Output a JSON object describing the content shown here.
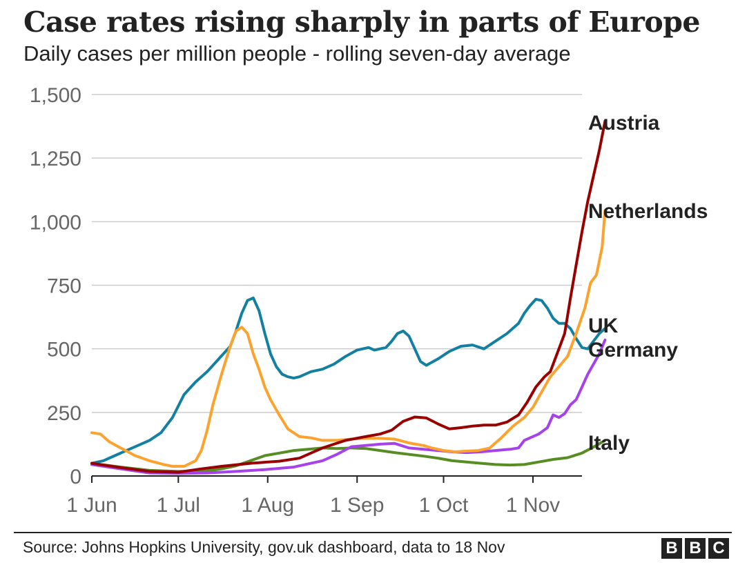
{
  "chart_data": {
    "type": "line",
    "title": "Case rates rising sharply in parts of Europe",
    "subtitle": "Daily cases per million people - rolling seven-day average",
    "xlabel": "",
    "ylabel": "",
    "ylim": [
      0,
      1500
    ],
    "yticks": [
      0,
      250,
      500,
      750,
      1000,
      1250,
      1500
    ],
    "ytick_labels": [
      "0",
      "250",
      "500",
      "750",
      "1,000",
      "1,250",
      "1,500"
    ],
    "xticks": [
      0,
      30,
      61,
      92,
      122,
      153
    ],
    "xtick_labels": [
      "1 Jun",
      "1 Jul",
      "1 Aug",
      "1 Sep",
      "1 Oct",
      "1 Nov"
    ],
    "xlim": [
      0,
      170
    ],
    "x_unit": "days since 1 Jun",
    "grid": true,
    "legend": "inline labels at line ends (right)",
    "series": [
      {
        "name": "Austria",
        "color": "#990000",
        "label_value": 1395,
        "points": [
          [
            0,
            50
          ],
          [
            10,
            33
          ],
          [
            20,
            18
          ],
          [
            30,
            15
          ],
          [
            38,
            28
          ],
          [
            45,
            38
          ],
          [
            55,
            50
          ],
          [
            65,
            58
          ],
          [
            72,
            70
          ],
          [
            80,
            110
          ],
          [
            88,
            140
          ],
          [
            95,
            155
          ],
          [
            100,
            165
          ],
          [
            104,
            180
          ],
          [
            108,
            215
          ],
          [
            112,
            232
          ],
          [
            116,
            228
          ],
          [
            120,
            205
          ],
          [
            124,
            185
          ],
          [
            128,
            190
          ],
          [
            132,
            196
          ],
          [
            136,
            200
          ],
          [
            140,
            200
          ],
          [
            144,
            212
          ],
          [
            148,
            240
          ],
          [
            151,
            290
          ],
          [
            154,
            350
          ],
          [
            157,
            390
          ],
          [
            159,
            410
          ],
          [
            162,
            500
          ],
          [
            164,
            560
          ],
          [
            166,
            700
          ],
          [
            168,
            830
          ],
          [
            170,
            960
          ],
          [
            172,
            1080
          ],
          [
            174,
            1180
          ],
          [
            176,
            1280
          ],
          [
            178,
            1395
          ]
        ]
      },
      {
        "name": "Netherlands",
        "color": "#fca22e",
        "label_value": 1045,
        "points": [
          [
            0,
            170
          ],
          [
            3,
            165
          ],
          [
            6,
            135
          ],
          [
            10,
            110
          ],
          [
            15,
            80
          ],
          [
            20,
            60
          ],
          [
            25,
            45
          ],
          [
            28,
            38
          ],
          [
            32,
            38
          ],
          [
            36,
            60
          ],
          [
            38,
            100
          ],
          [
            40,
            180
          ],
          [
            42,
            280
          ],
          [
            45,
            400
          ],
          [
            48,
            510
          ],
          [
            50,
            570
          ],
          [
            52,
            585
          ],
          [
            54,
            560
          ],
          [
            56,
            480
          ],
          [
            58,
            420
          ],
          [
            60,
            350
          ],
          [
            62,
            300
          ],
          [
            65,
            240
          ],
          [
            68,
            185
          ],
          [
            72,
            155
          ],
          [
            76,
            150
          ],
          [
            80,
            140
          ],
          [
            85,
            140
          ],
          [
            90,
            145
          ],
          [
            95,
            148
          ],
          [
            100,
            148
          ],
          [
            105,
            145
          ],
          [
            110,
            130
          ],
          [
            115,
            120
          ],
          [
            118,
            110
          ],
          [
            122,
            100
          ],
          [
            126,
            95
          ],
          [
            130,
            98
          ],
          [
            134,
            100
          ],
          [
            138,
            110
          ],
          [
            142,
            150
          ],
          [
            146,
            195
          ],
          [
            150,
            230
          ],
          [
            153,
            270
          ],
          [
            156,
            330
          ],
          [
            159,
            390
          ],
          [
            162,
            430
          ],
          [
            165,
            470
          ],
          [
            168,
            560
          ],
          [
            171,
            660
          ],
          [
            173,
            760
          ],
          [
            175,
            790
          ],
          [
            177,
            900
          ],
          [
            178,
            1045
          ]
        ]
      },
      {
        "name": "UK",
        "color": "#1380a1",
        "label_value": 580,
        "points": [
          [
            0,
            50
          ],
          [
            4,
            60
          ],
          [
            8,
            80
          ],
          [
            12,
            100
          ],
          [
            16,
            120
          ],
          [
            20,
            140
          ],
          [
            24,
            170
          ],
          [
            28,
            230
          ],
          [
            32,
            320
          ],
          [
            36,
            370
          ],
          [
            40,
            410
          ],
          [
            44,
            460
          ],
          [
            48,
            510
          ],
          [
            50,
            570
          ],
          [
            52,
            640
          ],
          [
            54,
            690
          ],
          [
            56,
            700
          ],
          [
            58,
            650
          ],
          [
            60,
            560
          ],
          [
            62,
            480
          ],
          [
            64,
            430
          ],
          [
            66,
            400
          ],
          [
            68,
            390
          ],
          [
            70,
            385
          ],
          [
            72,
            390
          ],
          [
            76,
            410
          ],
          [
            80,
            420
          ],
          [
            84,
            440
          ],
          [
            88,
            470
          ],
          [
            92,
            495
          ],
          [
            96,
            505
          ],
          [
            98,
            495
          ],
          [
            102,
            505
          ],
          [
            104,
            530
          ],
          [
            106,
            560
          ],
          [
            108,
            570
          ],
          [
            110,
            550
          ],
          [
            112,
            500
          ],
          [
            114,
            450
          ],
          [
            116,
            435
          ],
          [
            120,
            460
          ],
          [
            124,
            490
          ],
          [
            128,
            510
          ],
          [
            132,
            515
          ],
          [
            136,
            500
          ],
          [
            140,
            530
          ],
          [
            144,
            560
          ],
          [
            148,
            600
          ],
          [
            150,
            640
          ],
          [
            152,
            670
          ],
          [
            154,
            695
          ],
          [
            156,
            690
          ],
          [
            158,
            660
          ],
          [
            160,
            620
          ],
          [
            162,
            600
          ],
          [
            164,
            600
          ],
          [
            166,
            580
          ],
          [
            168,
            540
          ],
          [
            170,
            505
          ],
          [
            172,
            500
          ],
          [
            174,
            530
          ],
          [
            176,
            560
          ],
          [
            178,
            580
          ]
        ]
      },
      {
        "name": "Germany",
        "color": "#a542ea",
        "label_value": 535,
        "points": [
          [
            0,
            45
          ],
          [
            10,
            28
          ],
          [
            20,
            12
          ],
          [
            30,
            10
          ],
          [
            40,
            12
          ],
          [
            50,
            18
          ],
          [
            60,
            25
          ],
          [
            70,
            35
          ],
          [
            80,
            60
          ],
          [
            85,
            85
          ],
          [
            90,
            115
          ],
          [
            95,
            120
          ],
          [
            100,
            125
          ],
          [
            105,
            128
          ],
          [
            110,
            110
          ],
          [
            115,
            105
          ],
          [
            120,
            100
          ],
          [
            125,
            95
          ],
          [
            130,
            92
          ],
          [
            135,
            95
          ],
          [
            140,
            100
          ],
          [
            145,
            105
          ],
          [
            148,
            110
          ],
          [
            150,
            140
          ],
          [
            152,
            150
          ],
          [
            155,
            165
          ],
          [
            158,
            190
          ],
          [
            160,
            240
          ],
          [
            162,
            230
          ],
          [
            164,
            245
          ],
          [
            166,
            280
          ],
          [
            168,
            300
          ],
          [
            170,
            350
          ],
          [
            172,
            400
          ],
          [
            174,
            440
          ],
          [
            176,
            480
          ],
          [
            178,
            535
          ]
        ]
      },
      {
        "name": "Italy",
        "color": "#588d23",
        "label_value": 140,
        "points": [
          [
            0,
            50
          ],
          [
            10,
            35
          ],
          [
            20,
            22
          ],
          [
            30,
            18
          ],
          [
            40,
            20
          ],
          [
            45,
            28
          ],
          [
            50,
            40
          ],
          [
            55,
            60
          ],
          [
            60,
            80
          ],
          [
            65,
            90
          ],
          [
            70,
            100
          ],
          [
            75,
            105
          ],
          [
            80,
            110
          ],
          [
            85,
            108
          ],
          [
            90,
            110
          ],
          [
            95,
            108
          ],
          [
            100,
            100
          ],
          [
            105,
            92
          ],
          [
            110,
            85
          ],
          [
            115,
            78
          ],
          [
            120,
            70
          ],
          [
            125,
            60
          ],
          [
            130,
            55
          ],
          [
            135,
            50
          ],
          [
            140,
            45
          ],
          [
            145,
            43
          ],
          [
            150,
            45
          ],
          [
            155,
            55
          ],
          [
            160,
            65
          ],
          [
            165,
            72
          ],
          [
            170,
            90
          ],
          [
            175,
            120
          ],
          [
            178,
            140
          ]
        ]
      }
    ]
  },
  "source": "Source: Johns Hopkins University, gov.uk dashboard, data to 18 Nov",
  "logo": [
    "B",
    "B",
    "C"
  ]
}
